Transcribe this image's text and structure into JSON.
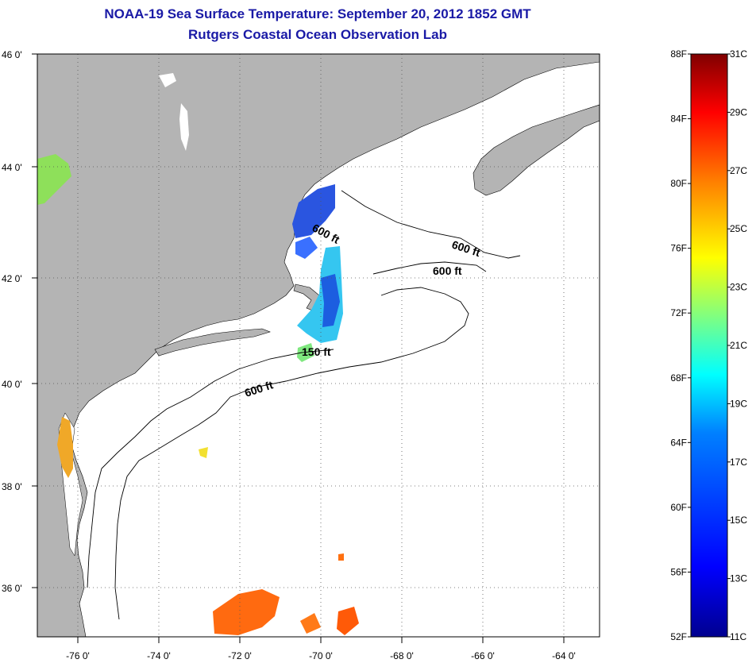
{
  "header": {
    "title": "NOAA-19 Sea Surface Temperature:  September 20, 2012 1852 GMT",
    "subtitle": "Rutgers Coastal Ocean Observation Lab"
  },
  "map": {
    "lat_labels": [
      "46 0'",
      "44 0'",
      "42 0'",
      "40 0'",
      "38 0'",
      "36 0'"
    ],
    "lon_labels": [
      "-76 0'",
      "-74 0'",
      "-72 0'",
      "-70 0'",
      "-68 0'",
      "-66 0'",
      "-64 0'"
    ],
    "lat_range": [
      35,
      46
    ],
    "lon_range": [
      -77,
      -63.5
    ],
    "grid": "dotted",
    "land_color": "#b4b4b4",
    "ocean_color": "#ffffff",
    "contour_labels": [
      "600 ft",
      "600 ft",
      "600 ft",
      "150 ft",
      "600 ft"
    ]
  },
  "colorbar": {
    "fahrenheit_labels": [
      "88F",
      "84F",
      "80F",
      "76F",
      "72F",
      "68F",
      "64F",
      "60F",
      "56F",
      "52F"
    ],
    "celsius_labels": [
      "31C",
      "29C",
      "27C",
      "25C",
      "23C",
      "21C",
      "19C",
      "17C",
      "15C",
      "13C",
      "11C"
    ],
    "range_c": [
      11,
      31
    ],
    "palette": [
      "#00008f",
      "#0000ff",
      "#0080ff",
      "#00ffff",
      "#80ff80",
      "#ffff00",
      "#ff8000",
      "#ff0000",
      "#800000"
    ]
  }
}
